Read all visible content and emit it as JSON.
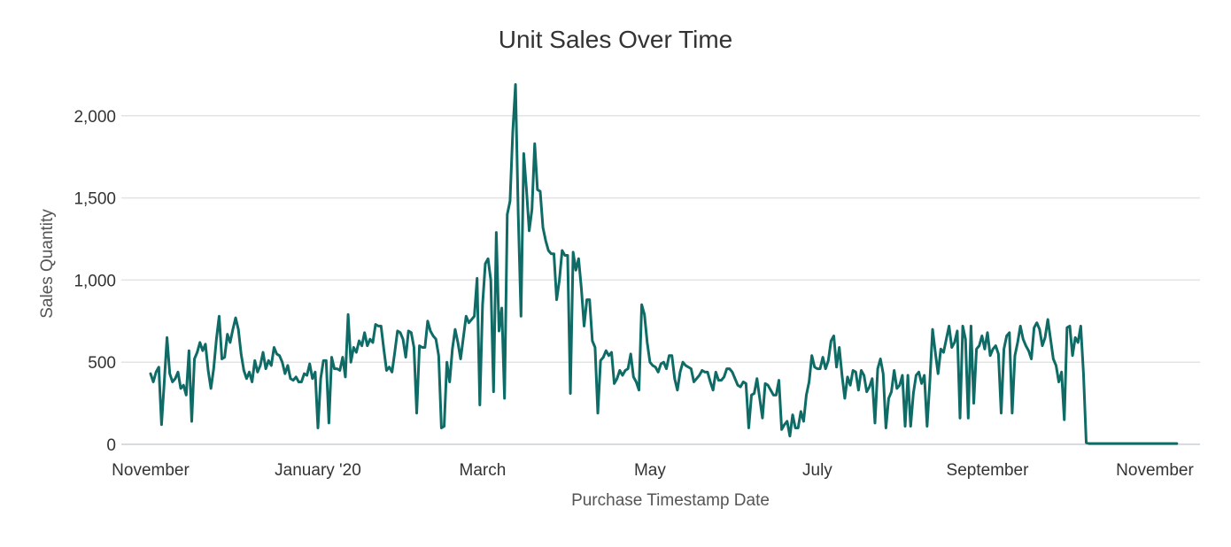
{
  "chart_data": {
    "type": "line",
    "title": "Unit Sales Over Time",
    "xlabel": "Purchase Timestamp Date",
    "ylabel": "Sales Quantity",
    "x_ticks": [
      {
        "date": "2019-11-01",
        "label": "November"
      },
      {
        "date": "2020-01-01",
        "label": "January '20"
      },
      {
        "date": "2020-03-01",
        "label": "March"
      },
      {
        "date": "2020-05-01",
        "label": "May"
      },
      {
        "date": "2020-07-01",
        "label": "July"
      },
      {
        "date": "2020-09-01",
        "label": "September"
      },
      {
        "date": "2020-11-01",
        "label": "November"
      }
    ],
    "y_ticks": [
      0,
      500,
      1000,
      1500,
      2000
    ],
    "y_tick_labels": [
      "0",
      "500",
      "1,000",
      "1,500",
      "2,000"
    ],
    "ylim": [
      0,
      2200
    ],
    "xlim": [
      "2019-11-01",
      "2020-11-01"
    ],
    "grid": true,
    "legend": "none",
    "color": "#0e6b66",
    "series": [
      {
        "name": "",
        "start_date": "2019-11-01",
        "step_days": 1,
        "values": [
          430,
          380,
          440,
          470,
          120,
          380,
          650,
          430,
          380,
          400,
          440,
          340,
          360,
          300,
          570,
          140,
          520,
          560,
          620,
          570,
          610,
          450,
          340,
          460,
          640,
          780,
          520,
          530,
          670,
          620,
          700,
          770,
          700,
          550,
          450,
          400,
          440,
          380,
          510,
          440,
          480,
          560,
          460,
          510,
          480,
          590,
          550,
          540,
          500,
          430,
          480,
          400,
          390,
          410,
          380,
          380,
          430,
          420,
          490,
          400,
          440,
          100,
          400,
          510,
          510,
          130,
          530,
          460,
          460,
          450,
          530,
          410,
          790,
          500,
          590,
          560,
          630,
          600,
          680,
          600,
          640,
          620,
          730,
          720,
          720,
          580,
          450,
          470,
          440,
          560,
          690,
          680,
          640,
          530,
          690,
          680,
          590,
          190,
          600,
          590,
          590,
          750,
          690,
          660,
          640,
          540,
          100,
          110,
          500,
          380,
          580,
          700,
          620,
          520,
          650,
          780,
          740,
          760,
          780,
          1010,
          240,
          850,
          1100,
          1130,
          1000,
          320,
          1290,
          690,
          830,
          280,
          1400,
          1480,
          1900,
          2190,
          1400,
          780,
          1770,
          1550,
          1300,
          1430,
          1830,
          1550,
          1540,
          1320,
          1240,
          1180,
          1160,
          1160,
          880,
          1000,
          1180,
          1150,
          1150,
          310,
          1170,
          1060,
          1130,
          950,
          720,
          880,
          880,
          630,
          590,
          190,
          510,
          530,
          570,
          540,
          560,
          370,
          400,
          450,
          420,
          450,
          460,
          550,
          410,
          380,
          330,
          850,
          790,
          620,
          500,
          480,
          470,
          440,
          490,
          500,
          460,
          540,
          540,
          400,
          330,
          440,
          500,
          480,
          470,
          460,
          380,
          400,
          420,
          450,
          440,
          440,
          380,
          330,
          440,
          390,
          390,
          410,
          460,
          460,
          440,
          400,
          360,
          350,
          380,
          370,
          100,
          300,
          310,
          400,
          280,
          160,
          370,
          360,
          330,
          300,
          300,
          390,
          90,
          120,
          140,
          50,
          180,
          100,
          100,
          200,
          140,
          300,
          380,
          540,
          470,
          460,
          460,
          530,
          460,
          510,
          630,
          660,
          470,
          590,
          420,
          280,
          410,
          360,
          450,
          440,
          330,
          450,
          420,
          320,
          350,
          400,
          130,
          460,
          520,
          430,
          100,
          280,
          320,
          450,
          340,
          360,
          420,
          110,
          420,
          110,
          310,
          420,
          440,
          370,
          420,
          110,
          380,
          700,
          560,
          430,
          580,
          560,
          640,
          720,
          590,
          620,
          690,
          160,
          720,
          640,
          160,
          720,
          250,
          580,
          600,
          660,
          580,
          680,
          540,
          580,
          600,
          550,
          190,
          580,
          660,
          680,
          190,
          540,
          620,
          720,
          640,
          600,
          570,
          520,
          710,
          740,
          700,
          600,
          650,
          760,
          640,
          520,
          480,
          380,
          440,
          150,
          710,
          720,
          540,
          650,
          620,
          720,
          430,
          10,
          5,
          5,
          5,
          5,
          5,
          5,
          5,
          5,
          5,
          5,
          5,
          5,
          5,
          5,
          5,
          5,
          5,
          5,
          5,
          5,
          5,
          5,
          5,
          5,
          5,
          5,
          5,
          5,
          5,
          5,
          5,
          5,
          5
        ]
      }
    ]
  }
}
